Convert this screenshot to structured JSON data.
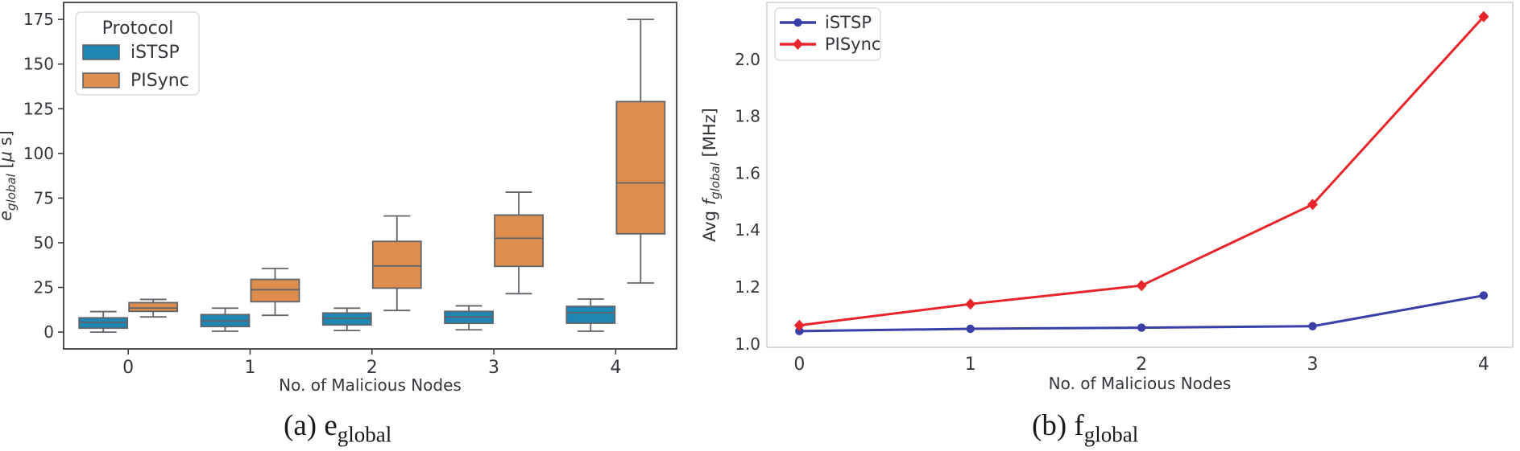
{
  "page": {
    "background": "#ffffff"
  },
  "captions": {
    "a": {
      "prefix": "(a) e",
      "sub": "global"
    },
    "b": {
      "prefix": "(b) f",
      "sub": "global"
    }
  },
  "chart_data": [
    {
      "id": "a",
      "type": "box",
      "title": "",
      "xlabel": "No. of Malicious Nodes",
      "ylabel_parts": [
        {
          "t": "e",
          "italic": true
        },
        {
          "t": "global",
          "italic": true,
          "sub": true
        },
        {
          "t": " [",
          "italic": false
        },
        {
          "t": "μ",
          "italic": true
        },
        {
          "t": " s]",
          "italic": false
        }
      ],
      "categories": [
        "0",
        "1",
        "2",
        "3",
        "4"
      ],
      "yticks": [
        0,
        25,
        50,
        75,
        100,
        125,
        150,
        175
      ],
      "ytick_labels": [
        "0",
        "25",
        "50",
        "75",
        "100",
        "125",
        "150",
        "175"
      ],
      "ylim": [
        -9.4,
        184.5
      ],
      "xlim": [
        -0.53,
        4.5
      ],
      "grid": false,
      "legend": {
        "title": "Protocol",
        "position": "upper-left"
      },
      "axis_color": "#3b3f44",
      "text_color": "#33373c",
      "box_edge_color": "#60656b",
      "series": [
        {
          "name": "iSTSP",
          "color": "#1f85b2",
          "boxes": [
            {
              "whislo": 0,
              "q1": 2.2,
              "med": 5.4,
              "q3": 8.0,
              "whishi": 11.5
            },
            {
              "whislo": 0.5,
              "q1": 3.1,
              "med": 6.3,
              "q3": 9.8,
              "whishi": 13.4
            },
            {
              "whislo": 0.9,
              "q1": 4.0,
              "med": 7.8,
              "q3": 10.7,
              "whishi": 13.4
            },
            {
              "whislo": 1.3,
              "q1": 4.9,
              "med": 8.5,
              "q3": 11.6,
              "whishi": 14.7
            },
            {
              "whislo": 0.5,
              "q1": 5.0,
              "med": 10.8,
              "q3": 14.4,
              "whishi": 18.5
            }
          ]
        },
        {
          "name": "PISync",
          "color": "#dd8d4e",
          "boxes": [
            {
              "whislo": 8.5,
              "q1": 11.6,
              "med": 13.5,
              "q3": 16.5,
              "whishi": 18.3
            },
            {
              "whislo": 9.4,
              "q1": 17.0,
              "med": 23.7,
              "q3": 29.5,
              "whishi": 35.6
            },
            {
              "whislo": 12.1,
              "q1": 24.6,
              "med": 37.0,
              "q3": 50.8,
              "whishi": 65.0
            },
            {
              "whislo": 21.5,
              "q1": 36.8,
              "med": 52.5,
              "q3": 65.5,
              "whishi": 78.3
            },
            {
              "whislo": 27.5,
              "q1": 55.0,
              "med": 83.5,
              "q3": 129.0,
              "whishi": 175.0
            }
          ]
        }
      ]
    },
    {
      "id": "b",
      "type": "line",
      "title": "",
      "xlabel": "No. of Malicious Nodes",
      "ylabel_parts": [
        {
          "t": "Avg ",
          "italic": false
        },
        {
          "t": "f",
          "italic": true
        },
        {
          "t": "global",
          "italic": true,
          "sub": true
        },
        {
          "t": " [MHz]",
          "italic": false
        }
      ],
      "x": [
        0,
        1,
        2,
        3,
        4
      ],
      "xtick_labels": [
        "0",
        "1",
        "2",
        "3",
        "4"
      ],
      "yticks": [
        1.0,
        1.2,
        1.4,
        1.6,
        1.8,
        2.0
      ],
      "ytick_labels": [
        "1.0",
        "1.2",
        "1.4",
        "1.6",
        "1.8",
        "2.0"
      ],
      "ylim": [
        0.988,
        2.2
      ],
      "xlim": [
        -0.19,
        4.17
      ],
      "grid": false,
      "legend": {
        "title": "",
        "position": "upper-left"
      },
      "axis_color": "#c9cdd4",
      "text_color": "#33373c",
      "series": [
        {
          "name": "iSTSP",
          "color": "#3a3fa8",
          "marker": "circle",
          "values": [
            1.045,
            1.053,
            1.057,
            1.062,
            1.17
          ]
        },
        {
          "name": "PISync",
          "color": "#e8252a",
          "marker": "diamond",
          "values": [
            1.065,
            1.14,
            1.205,
            1.49,
            2.15
          ]
        }
      ]
    }
  ]
}
